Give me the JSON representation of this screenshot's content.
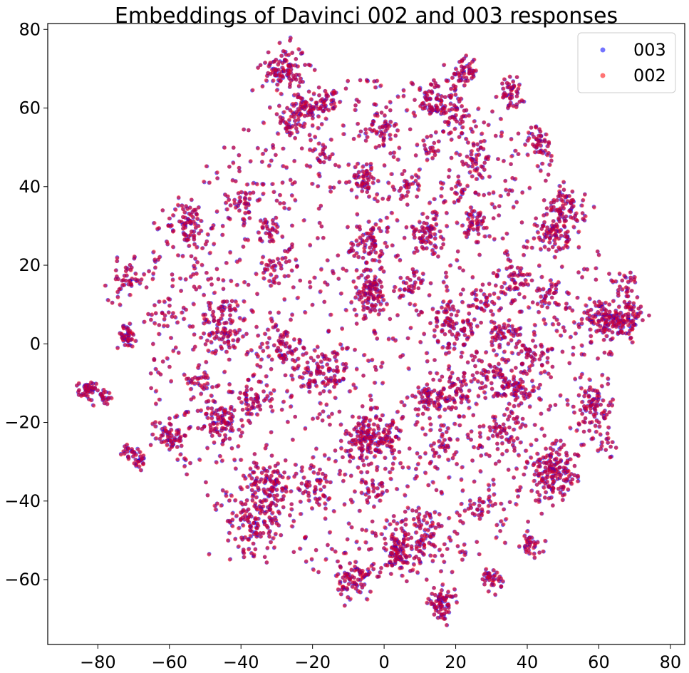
{
  "chart_data": {
    "type": "scatter",
    "title": "Embeddings of Davinci 002 and 003 responses",
    "xlabel": "",
    "ylabel": "",
    "xlim": [
      -94,
      84
    ],
    "ylim": [
      -76.5,
      81.5
    ],
    "xticks": [
      -80,
      -60,
      -40,
      -20,
      0,
      20,
      40,
      60,
      80
    ],
    "yticks": [
      -60,
      -40,
      -20,
      0,
      20,
      40,
      60,
      80
    ],
    "xtick_labels": [
      "−80",
      "−60",
      "−40",
      "−20",
      "0",
      "20",
      "40",
      "60",
      "80"
    ],
    "ytick_labels": [
      "−60",
      "−40",
      "−20",
      "0",
      "20",
      "40",
      "60",
      "80"
    ],
    "grid": false,
    "legend_position": "top-right",
    "series": [
      {
        "name": "003",
        "color": "#0000ff",
        "alpha": 0.55
      },
      {
        "name": "002",
        "color": "#ff0000",
        "alpha": 0.55
      }
    ],
    "clusters": [
      {
        "x": -83,
        "y": -12,
        "sd": 1.2,
        "n": 45
      },
      {
        "x": -78,
        "y": -13.5,
        "sd": 1.2,
        "n": 18
      },
      {
        "x": -72,
        "y": 2,
        "sd": 1.4,
        "n": 40
      },
      {
        "x": -72,
        "y": 16,
        "sd": 2.5,
        "n": 45
      },
      {
        "x": -71,
        "y": -27.5,
        "sd": 1.2,
        "n": 20
      },
      {
        "x": -68.5,
        "y": -30,
        "sd": 1.2,
        "n": 20
      },
      {
        "x": -60,
        "y": -23,
        "sd": 2.5,
        "n": 55
      },
      {
        "x": -61,
        "y": 8,
        "sd": 2.5,
        "n": 25
      },
      {
        "x": -55,
        "y": 30,
        "sd": 3.0,
        "n": 70
      },
      {
        "x": -46,
        "y": -20,
        "sd": 2.6,
        "n": 70
      },
      {
        "x": -45,
        "y": 5,
        "sd": 3.5,
        "n": 90
      },
      {
        "x": -51,
        "y": -9,
        "sd": 1.8,
        "n": 25
      },
      {
        "x": -40,
        "y": 36,
        "sd": 2.5,
        "n": 35
      },
      {
        "x": -36,
        "y": -45,
        "sd": 4.0,
        "n": 120
      },
      {
        "x": -37,
        "y": -14,
        "sd": 2.5,
        "n": 50
      },
      {
        "x": -32,
        "y": -36,
        "sd": 3.0,
        "n": 70
      },
      {
        "x": -28,
        "y": 70,
        "sd": 3.0,
        "n": 100
      },
      {
        "x": -22,
        "y": 59,
        "sd": 2.5,
        "n": 60
      },
      {
        "x": -16,
        "y": 61,
        "sd": 1.6,
        "n": 30
      },
      {
        "x": -27,
        "y": 56,
        "sd": 1.2,
        "n": 20
      },
      {
        "x": -33,
        "y": 29,
        "sd": 1.5,
        "n": 25
      },
      {
        "x": -30,
        "y": 20,
        "sd": 2.0,
        "n": 20
      },
      {
        "x": -28,
        "y": -1,
        "sd": 3.0,
        "n": 60
      },
      {
        "x": -20,
        "y": -36,
        "sd": 2.5,
        "n": 40
      },
      {
        "x": -17,
        "y": 49,
        "sd": 1.2,
        "n": 15
      },
      {
        "x": -17,
        "y": -8,
        "sd": 3.5,
        "n": 70
      },
      {
        "x": -8,
        "y": -60,
        "sd": 2.5,
        "n": 75
      },
      {
        "x": -5,
        "y": -24,
        "sd": 3.0,
        "n": 110
      },
      {
        "x": -4,
        "y": 13,
        "sd": 2.5,
        "n": 90
      },
      {
        "x": -5,
        "y": 42,
        "sd": 2.0,
        "n": 45
      },
      {
        "x": -4,
        "y": 25,
        "sd": 3.0,
        "n": 60
      },
      {
        "x": -2,
        "y": -37,
        "sd": 1.8,
        "n": 25
      },
      {
        "x": -1,
        "y": 55,
        "sd": 2.0,
        "n": 40
      },
      {
        "x": 4,
        "y": -53,
        "sd": 3.0,
        "n": 90
      },
      {
        "x": 2,
        "y": -24,
        "sd": 2.0,
        "n": 40
      },
      {
        "x": 6,
        "y": 40,
        "sd": 1.5,
        "n": 20
      },
      {
        "x": 7,
        "y": 15,
        "sd": 2.0,
        "n": 30
      },
      {
        "x": 12,
        "y": 28,
        "sd": 2.5,
        "n": 60
      },
      {
        "x": 12,
        "y": -48,
        "sd": 3.0,
        "n": 60
      },
      {
        "x": 12,
        "y": -15,
        "sd": 3.0,
        "n": 50
      },
      {
        "x": 14,
        "y": 62,
        "sd": 2.5,
        "n": 50
      },
      {
        "x": 13,
        "y": 50,
        "sd": 1.8,
        "n": 20
      },
      {
        "x": 16,
        "y": -66,
        "sd": 1.8,
        "n": 70
      },
      {
        "x": 16,
        "y": -26,
        "sd": 2.0,
        "n": 30
      },
      {
        "x": 19,
        "y": 4,
        "sd": 3.5,
        "n": 90
      },
      {
        "x": 19,
        "y": 58,
        "sd": 2.5,
        "n": 45
      },
      {
        "x": 22,
        "y": 69,
        "sd": 2.0,
        "n": 50
      },
      {
        "x": 20,
        "y": -12,
        "sd": 2.5,
        "n": 50
      },
      {
        "x": 21,
        "y": 39,
        "sd": 1.5,
        "n": 20
      },
      {
        "x": 25,
        "y": 47,
        "sd": 2.5,
        "n": 40
      },
      {
        "x": 25,
        "y": 31,
        "sd": 2.0,
        "n": 40
      },
      {
        "x": 28,
        "y": 10,
        "sd": 1.8,
        "n": 25
      },
      {
        "x": 27,
        "y": -41,
        "sd": 2.0,
        "n": 30
      },
      {
        "x": 30,
        "y": -60,
        "sd": 1.4,
        "n": 35
      },
      {
        "x": 30,
        "y": -8,
        "sd": 2.0,
        "n": 30
      },
      {
        "x": 33,
        "y": 2,
        "sd": 2.5,
        "n": 40
      },
      {
        "x": 33,
        "y": -22,
        "sd": 2.5,
        "n": 50
      },
      {
        "x": 35,
        "y": 64,
        "sd": 2.0,
        "n": 45
      },
      {
        "x": 37,
        "y": -11,
        "sd": 2.5,
        "n": 60
      },
      {
        "x": 37,
        "y": 15,
        "sd": 3.0,
        "n": 40
      },
      {
        "x": 42,
        "y": -3,
        "sd": 2.5,
        "n": 40
      },
      {
        "x": 43,
        "y": 52,
        "sd": 1.8,
        "n": 30
      },
      {
        "x": 45,
        "y": 49,
        "sd": 1.4,
        "n": 15
      },
      {
        "x": 47,
        "y": 28,
        "sd": 2.2,
        "n": 60
      },
      {
        "x": 51,
        "y": 34,
        "sd": 2.5,
        "n": 60
      },
      {
        "x": 47,
        "y": -33,
        "sd": 3.5,
        "n": 150
      },
      {
        "x": 41,
        "y": -51,
        "sd": 1.4,
        "n": 30
      },
      {
        "x": 45,
        "y": 12,
        "sd": 2.0,
        "n": 25
      },
      {
        "x": 59,
        "y": -16,
        "sd": 2.5,
        "n": 70
      },
      {
        "x": 61,
        "y": 6,
        "sd": 2.5,
        "n": 80
      },
      {
        "x": 68,
        "y": 6,
        "sd": 2.5,
        "n": 80
      },
      {
        "x": 67,
        "y": 15,
        "sd": 2.0,
        "n": 30
      },
      {
        "x": 61,
        "y": -25,
        "sd": 2.0,
        "n": 20
      }
    ],
    "background": {
      "cx": -2,
      "cy": 3,
      "sd": 30,
      "n": 1300
    }
  },
  "legend": {
    "items": [
      "003",
      "002"
    ]
  }
}
